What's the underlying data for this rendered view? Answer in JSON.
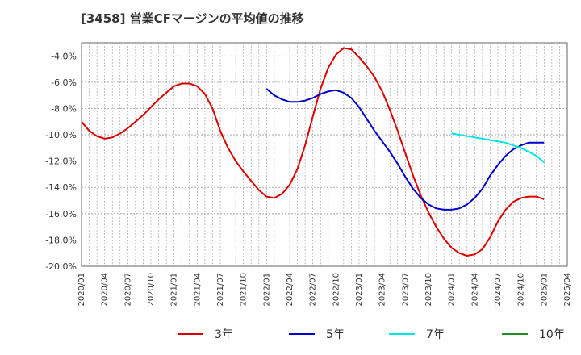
{
  "chart_data": {
    "type": "line",
    "title": "[3458]  営業CFマージンの平均値の推移",
    "xlabel": "",
    "ylabel": "",
    "ylim": [
      -20,
      -3
    ],
    "grid": true,
    "legend_position": "bottom",
    "x_tick_labels": [
      "2020/01",
      "2020/04",
      "2020/07",
      "2020/10",
      "2021/01",
      "2021/04",
      "2021/07",
      "2021/10",
      "2022/01",
      "2022/04",
      "2022/07",
      "2022/10",
      "2023/01",
      "2023/04",
      "2023/07",
      "2023/10",
      "2024/01",
      "2024/04",
      "2024/07",
      "2024/10",
      "2025/01",
      "2025/04"
    ],
    "y_ticks": [
      -4,
      -6,
      -8,
      -10,
      -12,
      -14,
      -16,
      -18,
      -20
    ],
    "y_tick_labels": [
      "-4.0%",
      "-6.0%",
      "-8.0%",
      "-10.0%",
      "-12.0%",
      "-14.0%",
      "-16.0%",
      "-18.0%",
      "-20.0%"
    ],
    "series": [
      {
        "name": "3年",
        "color": "#dd0000",
        "x": [
          "2020/01",
          "2020/02",
          "2020/03",
          "2020/04",
          "2020/05",
          "2020/06",
          "2020/07",
          "2020/08",
          "2020/09",
          "2020/10",
          "2020/11",
          "2020/12",
          "2021/01",
          "2021/02",
          "2021/03",
          "2021/04",
          "2021/05",
          "2021/06",
          "2021/07",
          "2021/08",
          "2021/09",
          "2021/10",
          "2021/11",
          "2021/12",
          "2022/01",
          "2022/02",
          "2022/03",
          "2022/04",
          "2022/05",
          "2022/06",
          "2022/07",
          "2022/08",
          "2022/09",
          "2022/10",
          "2022/11",
          "2022/12",
          "2023/01",
          "2023/02",
          "2023/03",
          "2023/04",
          "2023/05",
          "2023/06",
          "2023/07",
          "2023/08",
          "2023/09",
          "2023/10",
          "2023/11",
          "2023/12",
          "2024/01",
          "2024/02",
          "2024/03",
          "2024/04",
          "2024/05",
          "2024/06",
          "2024/07",
          "2024/08",
          "2024/09",
          "2024/10",
          "2024/11",
          "2024/12",
          "2025/01"
        ],
        "values": [
          -9.0,
          -9.7,
          -10.1,
          -10.3,
          -10.2,
          -9.9,
          -9.5,
          -9.0,
          -8.5,
          -7.9,
          -7.3,
          -6.8,
          -6.3,
          -6.1,
          -6.1,
          -6.3,
          -6.9,
          -8.0,
          -9.7,
          -11.0,
          -12.0,
          -12.8,
          -13.5,
          -14.2,
          -14.7,
          -14.8,
          -14.5,
          -13.8,
          -12.6,
          -10.8,
          -8.6,
          -6.5,
          -4.9,
          -3.9,
          -3.4,
          -3.5,
          -4.1,
          -4.8,
          -5.6,
          -6.7,
          -8.1,
          -9.7,
          -11.4,
          -13.1,
          -14.6,
          -15.9,
          -17.0,
          -17.9,
          -18.6,
          -19.0,
          -19.2,
          -19.1,
          -18.7,
          -17.8,
          -16.6,
          -15.7,
          -15.1,
          -14.8,
          -14.7,
          -14.7,
          -14.9
        ]
      },
      {
        "name": "5年",
        "color": "#0000cc",
        "x": [
          "2022/01",
          "2022/02",
          "2022/03",
          "2022/04",
          "2022/05",
          "2022/06",
          "2022/07",
          "2022/08",
          "2022/09",
          "2022/10",
          "2022/11",
          "2022/12",
          "2023/01",
          "2023/02",
          "2023/03",
          "2023/04",
          "2023/05",
          "2023/06",
          "2023/07",
          "2023/08",
          "2023/09",
          "2023/10",
          "2023/11",
          "2023/12",
          "2024/01",
          "2024/02",
          "2024/03",
          "2024/04",
          "2024/05",
          "2024/06",
          "2024/07",
          "2024/08",
          "2024/09",
          "2024/10",
          "2024/11",
          "2024/12",
          "2025/01"
        ],
        "values": [
          -6.5,
          -7.0,
          -7.3,
          -7.5,
          -7.5,
          -7.4,
          -7.2,
          -6.9,
          -6.7,
          -6.6,
          -6.8,
          -7.2,
          -7.9,
          -8.8,
          -9.7,
          -10.5,
          -11.3,
          -12.2,
          -13.2,
          -14.1,
          -14.8,
          -15.3,
          -15.6,
          -15.7,
          -15.7,
          -15.6,
          -15.3,
          -14.8,
          -14.1,
          -13.1,
          -12.3,
          -11.6,
          -11.1,
          -10.8,
          -10.6,
          -10.6,
          -10.6
        ]
      },
      {
        "name": "7年",
        "color": "#00e5e5",
        "x": [
          "2024/01",
          "2024/02",
          "2024/03",
          "2024/04",
          "2024/05",
          "2024/06",
          "2024/07",
          "2024/08",
          "2024/09",
          "2024/10",
          "2024/11",
          "2024/12",
          "2025/01"
        ],
        "values": [
          -9.9,
          -10.0,
          -10.1,
          -10.2,
          -10.3,
          -10.4,
          -10.5,
          -10.6,
          -10.8,
          -11.0,
          -11.3,
          -11.6,
          -12.1
        ]
      },
      {
        "name": "10年",
        "color": "#228b22",
        "x": [],
        "values": []
      }
    ]
  }
}
